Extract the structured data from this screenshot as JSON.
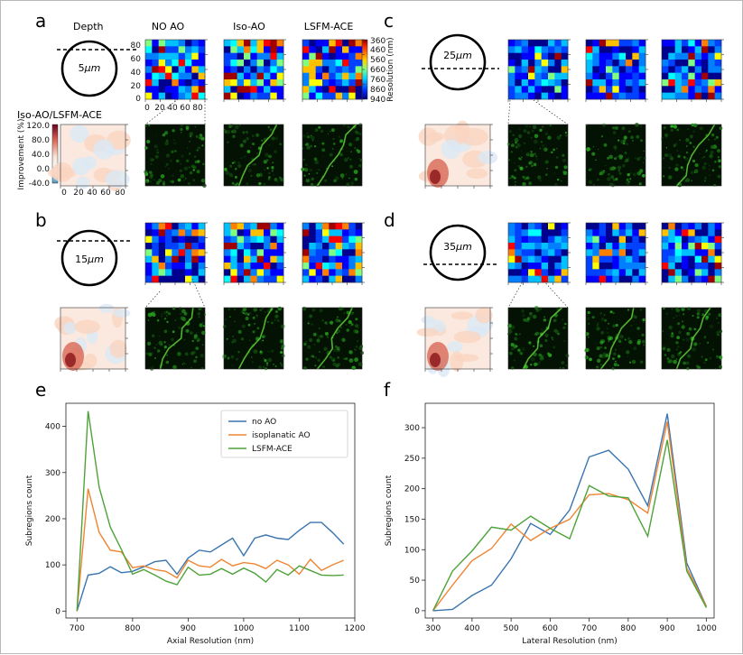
{
  "panels": {
    "a": {
      "label": "a",
      "depth_word": "Depth",
      "depth_text": "5μm",
      "depth_num": "5",
      "depth_unit": "μm"
    },
    "b": {
      "label": "b",
      "depth_text": "15μm",
      "depth_num": "15",
      "depth_unit": "μm"
    },
    "c": {
      "label": "c",
      "depth_text": "25μm",
      "depth_num": "25",
      "depth_unit": "μm"
    },
    "d": {
      "label": "d",
      "depth_text": "35μm",
      "depth_num": "35",
      "depth_unit": "μm"
    },
    "e": {
      "label": "e"
    },
    "f": {
      "label": "f"
    }
  },
  "column_titles": [
    "NO AO",
    "Iso-AO",
    "LSFM-ACE"
  ],
  "heatmap_axis_ticks": [
    "0",
    "20",
    "40",
    "60",
    "80"
  ],
  "resolution_colorbar": {
    "label": "Resolution (nm)",
    "ticks": [
      "360",
      "460",
      "560",
      "660",
      "760",
      "860",
      "940"
    ]
  },
  "improvement_map": {
    "title": "Iso-AO/LSFM-ACE",
    "label": "Improvement (%)",
    "ticks": [
      "120.0",
      "80.0",
      "40.0",
      "0.0",
      "-40.0"
    ]
  },
  "colors": {
    "no_ao": "#3a75b0",
    "iso_ao": "#ef8532",
    "lsfm_ace": "#4ea23a"
  },
  "chart_data": [
    {
      "type": "line",
      "xlabel": "Axial Resolution (nm)",
      "ylabel": "Subregions count",
      "xlim": [
        680,
        1200
      ],
      "ylim": [
        -15,
        450
      ],
      "xticks": [
        700,
        800,
        900,
        1000,
        1100,
        1200
      ],
      "yticks": [
        0,
        100,
        200,
        300,
        400
      ],
      "legend": "top-right",
      "x": [
        700,
        720,
        740,
        760,
        780,
        800,
        820,
        840,
        860,
        880,
        900,
        920,
        940,
        960,
        980,
        1000,
        1020,
        1040,
        1060,
        1080,
        1100,
        1120,
        1140,
        1160,
        1180
      ],
      "series": [
        {
          "name": "no AO",
          "values": [
            0,
            78,
            82,
            96,
            83,
            86,
            96,
            107,
            110,
            80,
            115,
            132,
            128,
            143,
            158,
            120,
            158,
            165,
            158,
            155,
            175,
            192,
            192,
            170,
            145
          ]
        },
        {
          "name": "isoplanatic AO",
          "values": [
            0,
            265,
            170,
            132,
            128,
            94,
            98,
            90,
            86,
            72,
            110,
            98,
            95,
            112,
            98,
            105,
            102,
            92,
            110,
            100,
            80,
            112,
            88,
            100,
            110
          ]
        },
        {
          "name": "LSFM-ACE",
          "values": [
            0,
            433,
            268,
            182,
            133,
            80,
            90,
            78,
            65,
            57,
            95,
            78,
            80,
            92,
            80,
            93,
            82,
            63,
            90,
            78,
            98,
            88,
            78,
            77,
            78
          ]
        }
      ]
    },
    {
      "type": "line",
      "xlabel": "Lateral Resolution (nm)",
      "ylabel": "Subregions count",
      "xlim": [
        280,
        1020
      ],
      "ylim": [
        -12,
        340
      ],
      "xticks": [
        300,
        400,
        500,
        600,
        700,
        800,
        900,
        1000
      ],
      "yticks": [
        0,
        50,
        100,
        150,
        200,
        250,
        300
      ],
      "x": [
        300,
        350,
        400,
        450,
        500,
        550,
        600,
        650,
        700,
        750,
        800,
        850,
        900,
        950,
        1000
      ],
      "series": [
        {
          "name": "no AO",
          "values": [
            0,
            2,
            25,
            42,
            85,
            143,
            125,
            165,
            252,
            263,
            232,
            172,
            323,
            78,
            7
          ]
        },
        {
          "name": "isoplanatic AO",
          "values": [
            0,
            42,
            82,
            102,
            142,
            115,
            135,
            150,
            190,
            192,
            182,
            160,
            310,
            70,
            7
          ]
        },
        {
          "name": "LSFM-ACE",
          "values": [
            0,
            65,
            98,
            137,
            132,
            155,
            135,
            118,
            205,
            188,
            185,
            122,
            280,
            65,
            5
          ]
        }
      ]
    }
  ]
}
